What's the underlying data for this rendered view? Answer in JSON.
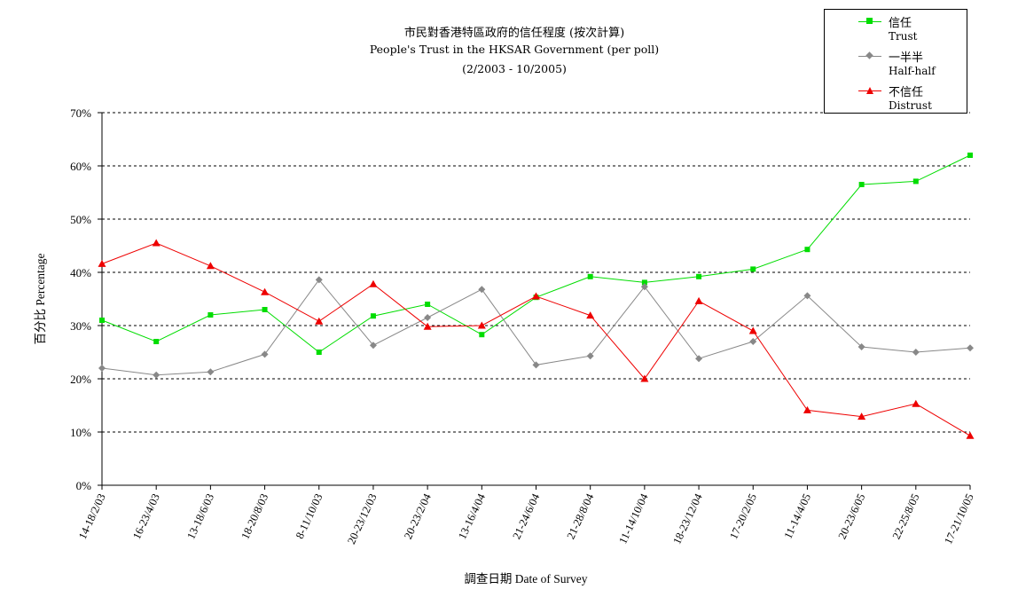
{
  "title": {
    "line1": "市民對香港特區政府的信任程度 (按次計算)",
    "line2": "People's Trust in the HKSAR Government (per poll)",
    "line3": "(2/2003 -  10/2005)"
  },
  "legend": [
    {
      "cn": "信任",
      "en": "Trust"
    },
    {
      "cn": "一半半",
      "en": "Half-half"
    },
    {
      "cn": "不信任",
      "en": "Distrust"
    }
  ],
  "chart_data": {
    "type": "line",
    "xlabel": "調查日期 Date of Survey",
    "ylabel": "百分比 Percentage",
    "ylim": [
      0,
      70
    ],
    "yticks": [
      "0%",
      "10%",
      "20%",
      "30%",
      "40%",
      "50%",
      "60%",
      "70%"
    ],
    "grid": "horizontal dashed",
    "legend_position": "top-right",
    "categories": [
      "14-18/2/03",
      "16-23/4/03",
      "13-18/6/03",
      "18-20/8/03",
      "8-11/10/03",
      "20-23/12/03",
      "20-23/2/04",
      "13-16/4/04",
      "21-24/6/04",
      "21-28/8/04",
      "11-14/10/04",
      "18-23/12/04",
      "17-20/2/05",
      "11-14/4/05",
      "20-23/6/05",
      "22-25/8/05",
      "17-21/10/05"
    ],
    "series": [
      {
        "name": "Trust",
        "color": "#00dd00",
        "marker": "square",
        "values": [
          31,
          27,
          32,
          33,
          25,
          31.8,
          34,
          28.3,
          35.3,
          39.2,
          38.1,
          39.2,
          40.6,
          44.3,
          56.5,
          57.1,
          62
        ]
      },
      {
        "name": "Half-half",
        "color": "#888888",
        "marker": "diamond",
        "values": [
          22,
          20.7,
          21.3,
          24.6,
          38.6,
          26.3,
          31.5,
          36.8,
          22.6,
          24.3,
          37.3,
          23.8,
          27,
          35.6,
          26,
          25,
          25.8
        ]
      },
      {
        "name": "Distrust",
        "color": "#ee0000",
        "marker": "triangle",
        "values": [
          41.6,
          45.5,
          41.2,
          36.3,
          30.8,
          37.8,
          29.8,
          30,
          35.5,
          31.9,
          20,
          34.6,
          29,
          14.1,
          12.9,
          15.3,
          9.3
        ]
      }
    ]
  }
}
